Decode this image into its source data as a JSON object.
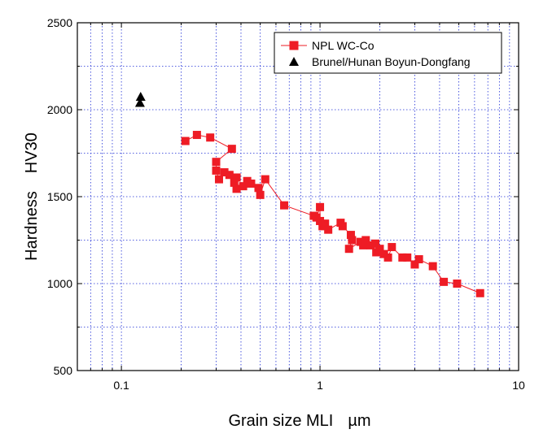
{
  "chart_data": {
    "type": "scatter",
    "title": "",
    "xlabel": "Grain size MLI",
    "xlabel_unit": "µm",
    "ylabel": "Hardness",
    "ylabel_unit": "HV30",
    "xscale": "log",
    "xlim": [
      0.06,
      10
    ],
    "ylim": [
      500,
      2500
    ],
    "x_ticks": [
      0.1,
      1,
      10
    ],
    "x_tick_labels": [
      "0.1",
      "1",
      "10"
    ],
    "y_ticks": [
      500,
      1000,
      1500,
      2000,
      2500
    ],
    "y_tick_labels": [
      "500",
      "1000",
      "1500",
      "2000",
      "2500"
    ],
    "grid": true,
    "legend_position": "top-right",
    "series": [
      {
        "name": "NPL WC-Co",
        "marker": "square",
        "color": "#ee1c25",
        "line": true,
        "points": [
          [
            0.21,
            1820
          ],
          [
            0.24,
            1855
          ],
          [
            0.28,
            1840
          ],
          [
            0.36,
            1775
          ],
          [
            0.3,
            1700
          ],
          [
            0.3,
            1650
          ],
          [
            0.31,
            1600
          ],
          [
            0.33,
            1640
          ],
          [
            0.35,
            1625
          ],
          [
            0.38,
            1610
          ],
          [
            0.37,
            1580
          ],
          [
            0.38,
            1545
          ],
          [
            0.41,
            1560
          ],
          [
            0.43,
            1590
          ],
          [
            0.45,
            1575
          ],
          [
            0.49,
            1550
          ],
          [
            0.5,
            1510
          ],
          [
            0.53,
            1600
          ],
          [
            0.66,
            1450
          ],
          [
            0.93,
            1390
          ],
          [
            0.96,
            1380
          ],
          [
            1.0,
            1440
          ],
          [
            1.0,
            1360
          ],
          [
            1.03,
            1330
          ],
          [
            1.06,
            1345
          ],
          [
            1.1,
            1310
          ],
          [
            1.27,
            1350
          ],
          [
            1.3,
            1330
          ],
          [
            1.43,
            1280
          ],
          [
            1.45,
            1250
          ],
          [
            1.4,
            1200
          ],
          [
            1.6,
            1240
          ],
          [
            1.65,
            1220
          ],
          [
            1.7,
            1250
          ],
          [
            1.8,
            1220
          ],
          [
            1.9,
            1230
          ],
          [
            1.92,
            1180
          ],
          [
            2.0,
            1200
          ],
          [
            2.1,
            1170
          ],
          [
            2.2,
            1150
          ],
          [
            2.3,
            1210
          ],
          [
            2.6,
            1150
          ],
          [
            2.75,
            1150
          ],
          [
            3.0,
            1110
          ],
          [
            3.15,
            1140
          ],
          [
            3.7,
            1100
          ],
          [
            4.2,
            1010
          ],
          [
            4.9,
            1000
          ],
          [
            6.4,
            945
          ]
        ]
      },
      {
        "name": "Brunel/Hunan Boyun-Dongfang",
        "marker": "triangle",
        "color": "#000000",
        "line": false,
        "points": [
          [
            0.125,
            2075
          ],
          [
            0.124,
            2040
          ]
        ]
      }
    ]
  }
}
